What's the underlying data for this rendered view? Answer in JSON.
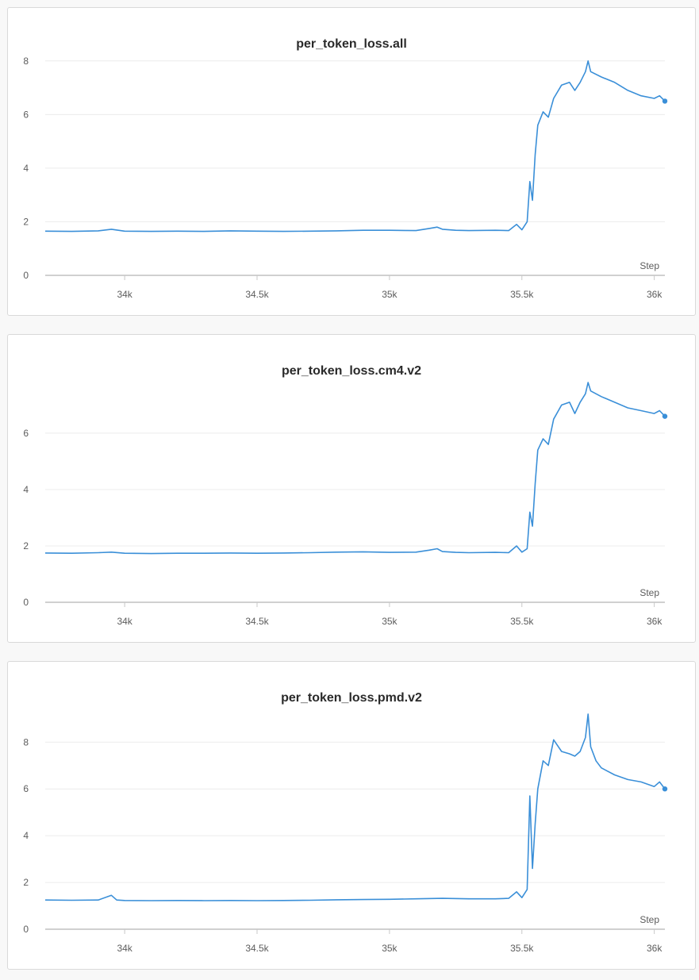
{
  "chart_data": [
    {
      "type": "line",
      "title": "per_token_loss.all",
      "xlabel": "Step",
      "ylabel": "",
      "xlim": [
        33700,
        36040
      ],
      "ylim": [
        0,
        8.2
      ],
      "xticks": [
        34000,
        34500,
        35000,
        35500,
        36000
      ],
      "xtick_labels": [
        "34k",
        "34.5k",
        "35k",
        "35.5k",
        "36k"
      ],
      "yticks": [
        0,
        2,
        4,
        6,
        8
      ],
      "ytick_labels": [
        "0",
        "2",
        "4",
        "6",
        "8"
      ],
      "grid": true,
      "series": [
        {
          "color": "#3a8fd8",
          "x": [
            33700,
            33800,
            33900,
            33950,
            34000,
            34100,
            34200,
            34300,
            34400,
            34500,
            34600,
            34700,
            34800,
            34900,
            35000,
            35100,
            35150,
            35180,
            35200,
            35250,
            35300,
            35400,
            35450,
            35480,
            35500,
            35520,
            35530,
            35540,
            35550,
            35560,
            35580,
            35600,
            35620,
            35650,
            35680,
            35700,
            35720,
            35740,
            35750,
            35760,
            35800,
            35850,
            35900,
            35950,
            36000,
            36020,
            36040
          ],
          "y": [
            1.65,
            1.64,
            1.66,
            1.72,
            1.65,
            1.64,
            1.65,
            1.64,
            1.66,
            1.65,
            1.64,
            1.65,
            1.66,
            1.68,
            1.68,
            1.67,
            1.75,
            1.8,
            1.72,
            1.68,
            1.67,
            1.68,
            1.67,
            1.9,
            1.7,
            2.0,
            3.5,
            2.8,
            4.5,
            5.6,
            6.1,
            5.9,
            6.6,
            7.1,
            7.2,
            6.9,
            7.2,
            7.6,
            8.0,
            7.6,
            7.4,
            7.2,
            6.9,
            6.7,
            6.6,
            6.7,
            6.5
          ]
        }
      ]
    },
    {
      "type": "line",
      "title": "per_token_loss.cm4.v2",
      "xlabel": "Step",
      "ylabel": "",
      "xlim": [
        33700,
        36040
      ],
      "ylim": [
        0,
        7.8
      ],
      "xticks": [
        34000,
        34500,
        35000,
        35500,
        36000
      ],
      "xtick_labels": [
        "34k",
        "34.5k",
        "35k",
        "35.5k",
        "36k"
      ],
      "yticks": [
        0,
        2,
        4,
        6
      ],
      "ytick_labels": [
        "0",
        "2",
        "4",
        "6"
      ],
      "grid": true,
      "series": [
        {
          "color": "#3a8fd8",
          "x": [
            33700,
            33800,
            33900,
            33950,
            34000,
            34100,
            34200,
            34300,
            34400,
            34500,
            34600,
            34700,
            34800,
            34900,
            35000,
            35100,
            35150,
            35180,
            35200,
            35250,
            35300,
            35400,
            35450,
            35480,
            35500,
            35520,
            35530,
            35540,
            35550,
            35560,
            35580,
            35600,
            35620,
            35650,
            35680,
            35700,
            35720,
            35740,
            35750,
            35760,
            35800,
            35850,
            35900,
            35950,
            36000,
            36020,
            36040
          ],
          "y": [
            1.75,
            1.74,
            1.76,
            1.78,
            1.74,
            1.73,
            1.74,
            1.74,
            1.75,
            1.74,
            1.75,
            1.76,
            1.78,
            1.79,
            1.77,
            1.78,
            1.85,
            1.9,
            1.8,
            1.77,
            1.76,
            1.77,
            1.76,
            2.0,
            1.78,
            1.9,
            3.2,
            2.7,
            4.2,
            5.4,
            5.8,
            5.6,
            6.5,
            7.0,
            7.1,
            6.7,
            7.1,
            7.4,
            7.8,
            7.5,
            7.3,
            7.1,
            6.9,
            6.8,
            6.7,
            6.8,
            6.6
          ]
        }
      ]
    },
    {
      "type": "line",
      "title": "per_token_loss.pmd.v2",
      "xlabel": "Step",
      "ylabel": "",
      "xlim": [
        33700,
        36040
      ],
      "ylim": [
        0,
        9.4
      ],
      "xticks": [
        34000,
        34500,
        35000,
        35500,
        36000
      ],
      "xtick_labels": [
        "34k",
        "34.5k",
        "35k",
        "35.5k",
        "36k"
      ],
      "yticks": [
        0,
        2,
        4,
        6,
        8
      ],
      "ytick_labels": [
        "0",
        "2",
        "4",
        "6",
        "8"
      ],
      "grid": true,
      "series": [
        {
          "color": "#3a8fd8",
          "x": [
            33700,
            33800,
            33900,
            33950,
            33970,
            34000,
            34100,
            34200,
            34300,
            34400,
            34500,
            34600,
            34700,
            34800,
            34900,
            35000,
            35100,
            35200,
            35300,
            35400,
            35450,
            35480,
            35500,
            35520,
            35530,
            35540,
            35550,
            35560,
            35580,
            35600,
            35620,
            35650,
            35680,
            35700,
            35720,
            35740,
            35750,
            35760,
            35780,
            35800,
            35850,
            35900,
            35950,
            36000,
            36020,
            36040
          ],
          "y": [
            1.25,
            1.24,
            1.25,
            1.45,
            1.25,
            1.23,
            1.22,
            1.23,
            1.22,
            1.23,
            1.22,
            1.23,
            1.24,
            1.26,
            1.27,
            1.28,
            1.3,
            1.32,
            1.3,
            1.3,
            1.32,
            1.6,
            1.35,
            1.7,
            5.7,
            2.6,
            4.5,
            6.0,
            7.2,
            7.0,
            8.1,
            7.6,
            7.5,
            7.4,
            7.6,
            8.2,
            9.2,
            7.8,
            7.2,
            6.9,
            6.6,
            6.4,
            6.3,
            6.1,
            6.3,
            6.0
          ]
        }
      ]
    }
  ]
}
